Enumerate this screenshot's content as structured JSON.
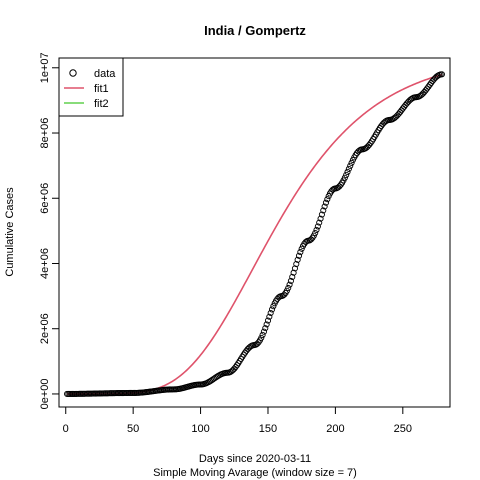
{
  "chart_data": {
    "type": "scatter",
    "title": "India / Gompertz",
    "xlabel": "Days since 2020-03-11",
    "xlabel_sub": "Simple Moving Avarage (window size = 7)",
    "ylabel": "Cumulative Cases",
    "xlim": [
      -5,
      285
    ],
    "ylim": [
      -400000,
      10300000
    ],
    "x_ticks": [
      0,
      50,
      100,
      150,
      200,
      250
    ],
    "x_tick_labels": [
      "0",
      "50",
      "100",
      "150",
      "200",
      "250"
    ],
    "y_ticks": [
      0,
      2000000,
      4000000,
      6000000,
      8000000,
      10000000
    ],
    "y_tick_labels": [
      "0e+00",
      "2e+06",
      "4e+06",
      "6e+06",
      "8e+06",
      "1e+07"
    ],
    "legend_placement": "top-left",
    "series": [
      {
        "name": "data",
        "kind": "points",
        "color": "#000000",
        "x_range": [
          1,
          279
        ],
        "x_step": 1,
        "points": [
          [
            0,
            0
          ],
          [
            50,
            30000
          ],
          [
            80,
            140000
          ],
          [
            100,
            290000
          ],
          [
            120,
            650000
          ],
          [
            140,
            1500000
          ],
          [
            160,
            3000000
          ],
          [
            180,
            4700000
          ],
          [
            200,
            6300000
          ],
          [
            220,
            7500000
          ],
          [
            240,
            8400000
          ],
          [
            260,
            9100000
          ],
          [
            279,
            9800000
          ]
        ]
      },
      {
        "name": "fit1",
        "kind": "line",
        "color": "#DF536B",
        "gompertz": {
          "a": 10400000,
          "b": 16,
          "c": 0.02
        },
        "x_range": [
          1,
          279
        ]
      },
      {
        "name": "fit2",
        "kind": "line",
        "color": "#61D04F",
        "points": []
      }
    ]
  }
}
